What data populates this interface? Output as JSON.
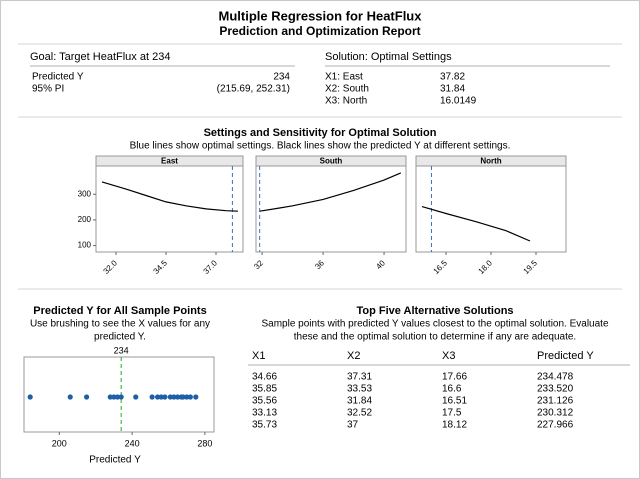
{
  "header": {
    "title": "Multiple Regression for HeatFlux",
    "subtitle": "Prediction and Optimization Report"
  },
  "goal": {
    "heading": "Goal: Target HeatFlux at 234",
    "rows": [
      [
        "Predicted Y",
        "234"
      ],
      [
        "95% PI",
        "(215.69, 252.31)"
      ]
    ]
  },
  "solution": {
    "heading": "Solution: Optimal Settings",
    "rows": [
      [
        "X1: East",
        "37.82"
      ],
      [
        "X2: South",
        "31.84"
      ],
      [
        "X3: North",
        "16.0149"
      ]
    ]
  },
  "sensitivity": {
    "title": "Settings and Sensitivity for Optimal Solution",
    "subtitle": "Blue lines show optimal settings. Black lines show the predicted Y at different settings.",
    "ylim": [
      75,
      410
    ],
    "yticks": [
      100,
      200,
      300
    ],
    "line_color": "#000000",
    "optimal_color": "#3a6fc4",
    "panels": [
      {
        "name": "East",
        "xlim": [
          31.0,
          38.35
        ],
        "xticks": [
          {
            "value": 32,
            "label": "32.0"
          },
          34.5,
          {
            "value": 37,
            "label": "37.0"
          }
        ],
        "optimal": 37.82,
        "x": [
          31.3,
          32.5,
          33.5,
          34.5,
          35.5,
          36.5,
          37.5,
          38.1
        ],
        "y": [
          348,
          320,
          295,
          270,
          255,
          243,
          236,
          234
        ]
      },
      {
        "name": "South",
        "xlim": [
          31.6,
          41.44
        ],
        "xticks": [
          32,
          36,
          40
        ],
        "optimal": 31.84,
        "x": [
          31.84,
          33,
          34,
          36,
          38,
          40,
          41.1
        ],
        "y": [
          234,
          245,
          255,
          280,
          315,
          355,
          383
        ]
      },
      {
        "name": "North",
        "xlim": [
          15.5,
          20.5
        ],
        "xticks": [
          16.5,
          {
            "value": 18,
            "label": "18.0"
          },
          19.5
        ],
        "optimal": 16.0149,
        "x": [
          15.7,
          16.5,
          17.5,
          18.5,
          19.3
        ],
        "y": [
          252,
          225,
          193,
          158,
          118
        ]
      }
    ]
  },
  "dot_plot": {
    "title": "Predicted Y for All Sample Points",
    "subtitle_lines": [
      "Use brushing to see the X values for any",
      "predicted Y."
    ],
    "xlim": [
      180.6,
      285
    ],
    "xticks": [
      200,
      240,
      280
    ],
    "xlabel": "Predicted Y",
    "reference": {
      "value": 234,
      "label": "234",
      "color": "#22aa22"
    },
    "color": "#1f5fa8",
    "values": [
      184,
      206,
      215,
      228,
      230,
      232,
      234,
      242,
      251,
      254,
      256,
      258,
      261,
      263,
      265,
      267,
      268,
      270,
      272,
      275
    ]
  },
  "alternatives": {
    "title": "Top Five Alternative Solutions",
    "subtitle_lines": [
      "Sample points with predicted Y values closest to the optimal solution. Evaluate",
      "these and the optimal solution to determine if any are adequate."
    ],
    "columns": [
      "X1",
      "X2",
      "X3",
      "Predicted Y"
    ],
    "rows": [
      [
        "34.66",
        "37.31",
        "17.66",
        "234.478"
      ],
      [
        "35.85",
        "33.53",
        "16.6",
        "233.520"
      ],
      [
        "35.56",
        "31.84",
        "16.51",
        "231.126"
      ],
      [
        "33.13",
        "32.52",
        "17.5",
        "230.312"
      ],
      [
        "35.73",
        "37",
        "18.12",
        "227.966"
      ]
    ]
  }
}
